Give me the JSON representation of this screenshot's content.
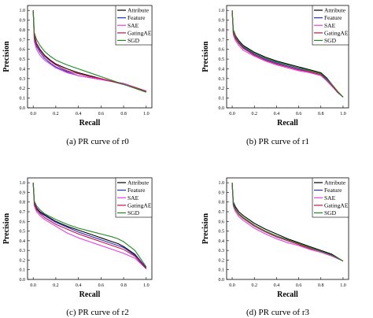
{
  "legend_entries": [
    "Attribute",
    "Feature",
    "SAE",
    "GatingAE",
    "SGD"
  ],
  "series_colors": {
    "Attribute": "#000000",
    "Feature": "#2233cc",
    "SAE": "#e83ce8",
    "GatingAE": "#cc1144",
    "SGD": "#1f8a1f"
  },
  "chart_data": [
    {
      "type": "line",
      "caption": "(a) PR curve of r0",
      "xlabel": "Recall",
      "ylabel": "Precision",
      "xlim": [
        -0.05,
        1.05
      ],
      "ylim": [
        0.0,
        1.05
      ],
      "xticks": [
        "0.0",
        "0.2",
        "0.4",
        "0.6",
        "0.8",
        "1.0"
      ],
      "yticks": [
        "0.0",
        "0.1",
        "0.2",
        "0.3",
        "0.4",
        "0.5",
        "0.6",
        "0.7",
        "0.8",
        "0.9",
        "1.0"
      ],
      "legend_position": "top-right",
      "grid": false,
      "x": [
        0.0,
        0.01,
        0.03,
        0.06,
        0.1,
        0.15,
        0.2,
        0.3,
        0.4,
        0.5,
        0.6,
        0.7,
        0.8,
        0.9,
        1.0
      ],
      "series": [
        {
          "name": "Attribute",
          "values": [
            1.0,
            0.74,
            0.66,
            0.6,
            0.54,
            0.49,
            0.45,
            0.4,
            0.36,
            0.33,
            0.3,
            0.27,
            0.25,
            0.21,
            0.17
          ]
        },
        {
          "name": "Feature",
          "values": [
            1.0,
            0.7,
            0.63,
            0.57,
            0.51,
            0.46,
            0.42,
            0.37,
            0.33,
            0.31,
            0.29,
            0.27,
            0.24,
            0.21,
            0.17
          ]
        },
        {
          "name": "SAE",
          "values": [
            1.0,
            0.68,
            0.6,
            0.54,
            0.49,
            0.45,
            0.41,
            0.36,
            0.33,
            0.31,
            0.29,
            0.27,
            0.25,
            0.21,
            0.17
          ]
        },
        {
          "name": "GatingAE",
          "values": [
            1.0,
            0.72,
            0.65,
            0.59,
            0.53,
            0.48,
            0.44,
            0.38,
            0.35,
            0.32,
            0.3,
            0.27,
            0.24,
            0.21,
            0.17
          ]
        },
        {
          "name": "SGD",
          "values": [
            1.0,
            0.77,
            0.7,
            0.64,
            0.58,
            0.53,
            0.49,
            0.44,
            0.4,
            0.36,
            0.32,
            0.28,
            0.24,
            0.2,
            0.16
          ]
        }
      ]
    },
    {
      "type": "line",
      "caption": "(b) PR curve of r1",
      "xlabel": "Recall",
      "ylabel": "Precision",
      "xlim": [
        -0.05,
        1.05
      ],
      "ylim": [
        0.0,
        1.05
      ],
      "xticks": [
        "0.0",
        "0.2",
        "0.4",
        "0.6",
        "0.8",
        "1.0"
      ],
      "yticks": [
        "0.0",
        "0.1",
        "0.2",
        "0.3",
        "0.4",
        "0.5",
        "0.6",
        "0.7",
        "0.8",
        "0.9",
        "1.0"
      ],
      "legend_position": "top-right",
      "grid": false,
      "x": [
        0.0,
        0.01,
        0.03,
        0.06,
        0.1,
        0.2,
        0.3,
        0.4,
        0.5,
        0.6,
        0.7,
        0.8,
        0.85,
        0.9,
        0.95,
        1.0
      ],
      "series": [
        {
          "name": "Attribute",
          "values": [
            1.0,
            0.8,
            0.74,
            0.69,
            0.64,
            0.57,
            0.52,
            0.48,
            0.45,
            0.42,
            0.39,
            0.36,
            0.31,
            0.24,
            0.17,
            0.11
          ]
        },
        {
          "name": "Feature",
          "values": [
            1.0,
            0.78,
            0.72,
            0.67,
            0.62,
            0.55,
            0.5,
            0.46,
            0.43,
            0.4,
            0.37,
            0.34,
            0.29,
            0.23,
            0.16,
            0.11
          ]
        },
        {
          "name": "SAE",
          "values": [
            1.0,
            0.75,
            0.69,
            0.64,
            0.59,
            0.53,
            0.48,
            0.44,
            0.41,
            0.38,
            0.36,
            0.33,
            0.28,
            0.22,
            0.16,
            0.11
          ]
        },
        {
          "name": "GatingAE",
          "values": [
            1.0,
            0.77,
            0.71,
            0.66,
            0.61,
            0.54,
            0.49,
            0.45,
            0.42,
            0.39,
            0.37,
            0.34,
            0.3,
            0.23,
            0.16,
            0.11
          ]
        },
        {
          "name": "SGD",
          "values": [
            1.0,
            0.79,
            0.73,
            0.68,
            0.63,
            0.56,
            0.51,
            0.47,
            0.44,
            0.41,
            0.38,
            0.35,
            0.3,
            0.24,
            0.17,
            0.11
          ]
        }
      ]
    },
    {
      "type": "line",
      "caption": "(c) PR curve of r2",
      "xlabel": "Recall",
      "ylabel": "Precision",
      "xlim": [
        -0.05,
        1.05
      ],
      "ylim": [
        0.0,
        1.05
      ],
      "xticks": [
        "0.0",
        "0.2",
        "0.4",
        "0.6",
        "0.8",
        "1.0"
      ],
      "yticks": [
        "0.0",
        "0.1",
        "0.2",
        "0.3",
        "0.4",
        "0.5",
        "0.6",
        "0.7",
        "0.8",
        "0.9",
        "1.0"
      ],
      "legend_position": "top-right",
      "grid": false,
      "x": [
        0.0,
        0.01,
        0.03,
        0.06,
        0.1,
        0.2,
        0.3,
        0.4,
        0.5,
        0.6,
        0.7,
        0.75,
        0.8,
        0.9,
        1.0
      ],
      "series": [
        {
          "name": "Attribute",
          "values": [
            1.0,
            0.8,
            0.74,
            0.7,
            0.67,
            0.6,
            0.55,
            0.51,
            0.47,
            0.43,
            0.39,
            0.37,
            0.34,
            0.26,
            0.12
          ]
        },
        {
          "name": "Feature",
          "values": [
            1.0,
            0.79,
            0.73,
            0.69,
            0.66,
            0.59,
            0.54,
            0.49,
            0.45,
            0.41,
            0.37,
            0.35,
            0.33,
            0.25,
            0.12
          ]
        },
        {
          "name": "SAE",
          "values": [
            1.0,
            0.76,
            0.7,
            0.66,
            0.62,
            0.55,
            0.48,
            0.43,
            0.39,
            0.35,
            0.31,
            0.29,
            0.27,
            0.22,
            0.11
          ]
        },
        {
          "name": "GatingAE",
          "values": [
            1.0,
            0.78,
            0.72,
            0.68,
            0.64,
            0.57,
            0.52,
            0.47,
            0.43,
            0.39,
            0.35,
            0.33,
            0.31,
            0.24,
            0.11
          ]
        },
        {
          "name": "SGD",
          "values": [
            1.0,
            0.81,
            0.76,
            0.72,
            0.68,
            0.62,
            0.57,
            0.53,
            0.5,
            0.47,
            0.44,
            0.42,
            0.39,
            0.3,
            0.13
          ]
        }
      ]
    },
    {
      "type": "line",
      "caption": "(d) PR curve of r3",
      "xlabel": "Recall",
      "ylabel": "Precision",
      "xlim": [
        -0.05,
        1.05
      ],
      "ylim": [
        0.0,
        1.05
      ],
      "xticks": [
        "0.0",
        "0.2",
        "0.4",
        "0.6",
        "0.8",
        "1.0"
      ],
      "yticks": [
        "0.0",
        "0.1",
        "0.2",
        "0.3",
        "0.4",
        "0.5",
        "0.6",
        "0.7",
        "0.8",
        "0.9",
        "1.0"
      ],
      "legend_position": "top-right",
      "grid": false,
      "x": [
        0.0,
        0.01,
        0.03,
        0.06,
        0.1,
        0.2,
        0.3,
        0.4,
        0.5,
        0.6,
        0.7,
        0.8,
        0.9,
        1.0
      ],
      "series": [
        {
          "name": "Attribute",
          "values": [
            1.0,
            0.8,
            0.75,
            0.7,
            0.66,
            0.58,
            0.52,
            0.47,
            0.42,
            0.38,
            0.34,
            0.3,
            0.26,
            0.19
          ]
        },
        {
          "name": "Feature",
          "values": [
            1.0,
            0.79,
            0.73,
            0.68,
            0.64,
            0.56,
            0.5,
            0.45,
            0.41,
            0.37,
            0.33,
            0.29,
            0.25,
            0.19
          ]
        },
        {
          "name": "SAE",
          "values": [
            1.0,
            0.76,
            0.7,
            0.65,
            0.61,
            0.53,
            0.47,
            0.42,
            0.38,
            0.35,
            0.31,
            0.28,
            0.24,
            0.19
          ]
        },
        {
          "name": "GatingAE",
          "values": [
            1.0,
            0.77,
            0.72,
            0.67,
            0.63,
            0.55,
            0.49,
            0.44,
            0.4,
            0.36,
            0.32,
            0.29,
            0.25,
            0.19
          ]
        },
        {
          "name": "SGD",
          "values": [
            1.0,
            0.78,
            0.73,
            0.68,
            0.64,
            0.56,
            0.5,
            0.45,
            0.41,
            0.37,
            0.33,
            0.29,
            0.25,
            0.19
          ]
        }
      ]
    }
  ]
}
